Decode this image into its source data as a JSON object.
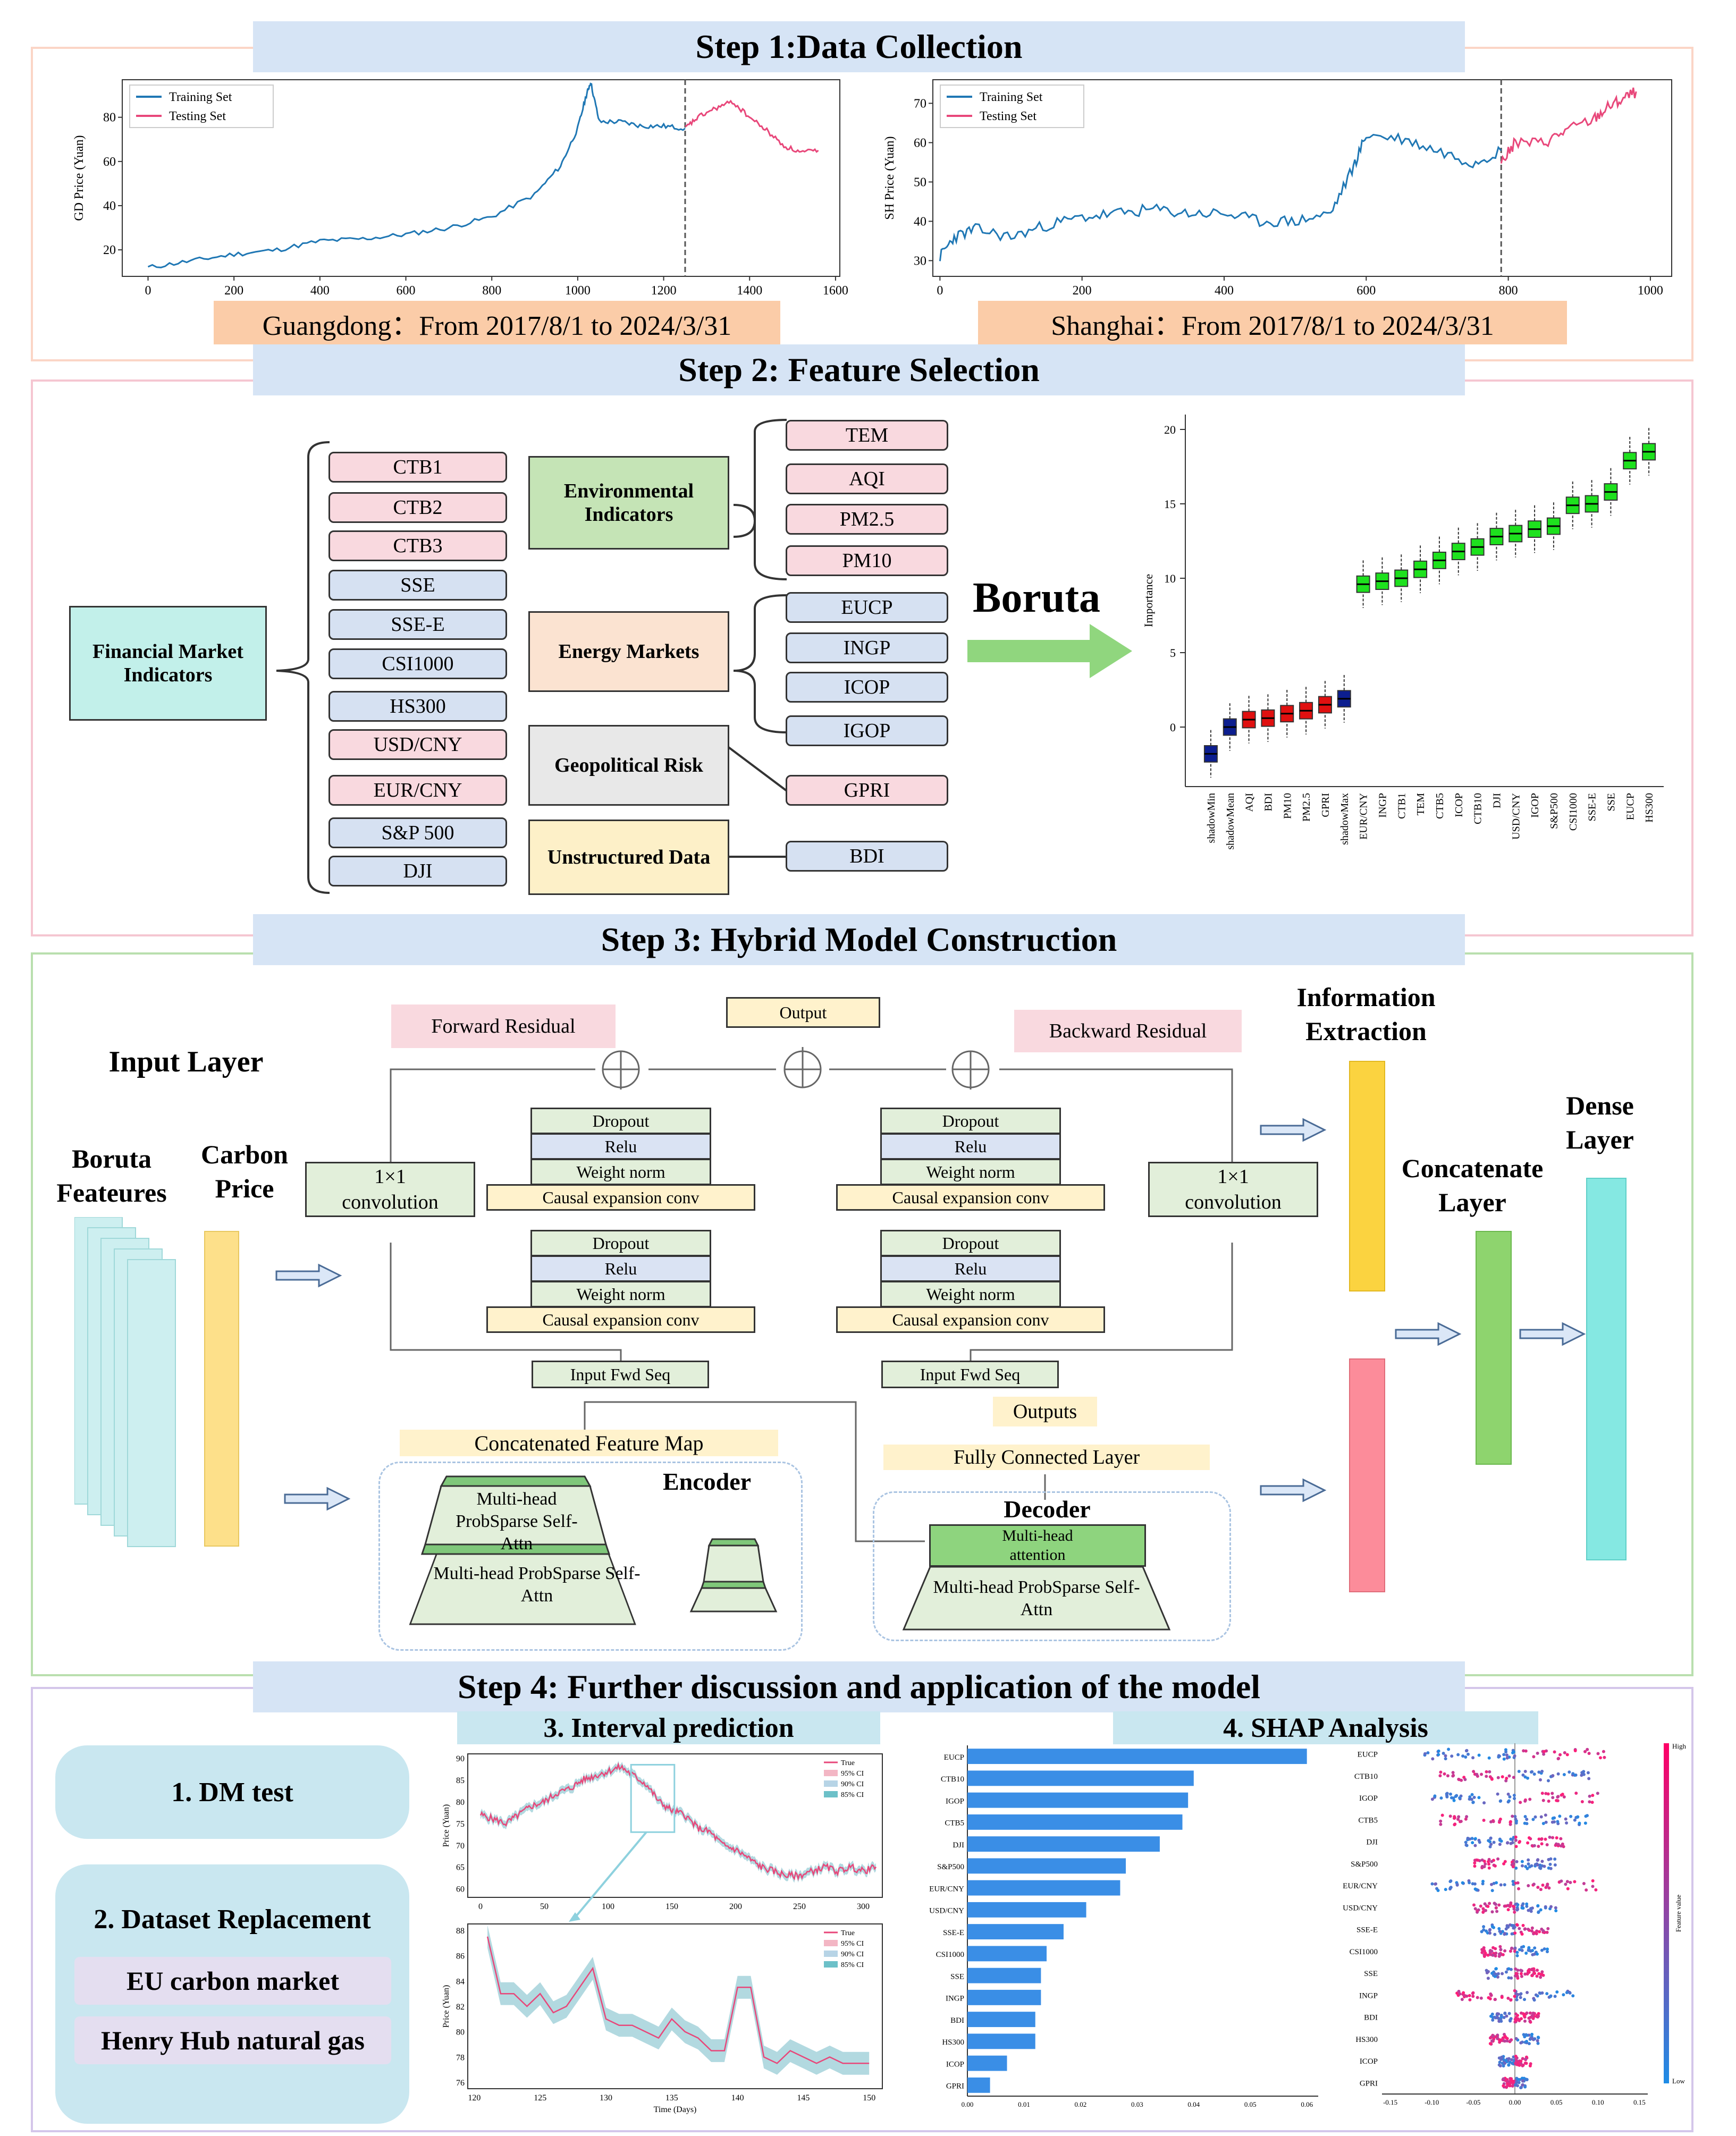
{
  "steps": {
    "step1": "Step 1:Data Collection",
    "step2": "Step 2: Feature Selection",
    "step3": "Step 3: Hybrid Model Construction",
    "step4": "Step 4: Further discussion and application of the model"
  },
  "step1": {
    "gd_caption": "Guangdong：From 2017/8/1 to 2024/3/31",
    "sh_caption": "Shanghai：From 2017/8/1 to 2024/3/31"
  },
  "chart_data": [
    {
      "type": "line",
      "ylabel": "GD Price (Yuan)",
      "x_ticks": [
        "0",
        "200",
        "400",
        "600",
        "800",
        "1000",
        "1200",
        "1400",
        "1600"
      ],
      "y_ticks": [
        "20",
        "40",
        "60",
        "80"
      ],
      "xlim": [
        -60,
        1610
      ],
      "ylim": [
        8,
        97
      ],
      "legend": [
        "Training Set",
        "Testing Set"
      ],
      "legend_position": "top-left",
      "split_x": 1250,
      "series": [
        {
          "name": "Training Set",
          "color": "#1f77b4",
          "x": [
            0,
            100,
            200,
            300,
            400,
            500,
            600,
            700,
            800,
            900,
            960,
            1000,
            1020,
            1030,
            1050,
            1100,
            1150,
            1200,
            1250
          ],
          "y": [
            12,
            15,
            18,
            20,
            24,
            25,
            27,
            30,
            35,
            45,
            58,
            75,
            90,
            96,
            78,
            78,
            76,
            76,
            75
          ]
        },
        {
          "name": "Testing Set",
          "color": "#e8477a",
          "x": [
            1250,
            1280,
            1320,
            1360,
            1400,
            1440,
            1480,
            1520,
            1560
          ],
          "y": [
            75,
            80,
            84,
            87,
            80,
            74,
            67,
            64,
            65
          ]
        }
      ]
    },
    {
      "type": "line",
      "ylabel": "SH Price (Yuan)",
      "x_ticks": [
        "0",
        "200",
        "400",
        "600",
        "800",
        "1000"
      ],
      "y_ticks": [
        "30",
        "40",
        "50",
        "60",
        "70"
      ],
      "xlim": [
        -10,
        1030
      ],
      "ylim": [
        26,
        76
      ],
      "legend": [
        "Training Set",
        "Testing Set"
      ],
      "legend_position": "top-left",
      "split_x": 790,
      "series": [
        {
          "name": "Training Set",
          "color": "#1f77b4",
          "x": [
            0,
            20,
            50,
            100,
            150,
            200,
            250,
            300,
            350,
            400,
            450,
            500,
            550,
            580,
            600,
            650,
            700,
            750,
            790
          ],
          "y": [
            31,
            36,
            38,
            36,
            39,
            41,
            42,
            43,
            42,
            42,
            40,
            40,
            42,
            53,
            62,
            61,
            58,
            55,
            58
          ]
        },
        {
          "name": "Testing Set",
          "color": "#e8477a",
          "x": [
            790,
            810,
            850,
            880,
            920,
            940,
            960,
            980
          ],
          "y": [
            55,
            60,
            60,
            63,
            66,
            69,
            71,
            73
          ]
        }
      ]
    },
    {
      "type": "box",
      "ylabel": "Importance",
      "y_ticks": [
        "0",
        "5",
        "10",
        "15",
        "20"
      ],
      "ylim": [
        -4,
        21
      ],
      "categories": [
        "shadowMin",
        "shadowMean",
        "AQI",
        "BDI",
        "PM10",
        "PM2.5",
        "GPRI",
        "shadowMax",
        "EUR/CNY",
        "INGP",
        "CTB1",
        "TEM",
        "CTB5",
        "ICOP",
        "CTB10",
        "DJI",
        "USD/CNY",
        "IGOP",
        "S&P500",
        "CSI1000",
        "SSE-E",
        "SSE",
        "EUCP",
        "HS300"
      ],
      "medians": [
        -1.8,
        0.0,
        0.5,
        0.6,
        0.9,
        1.1,
        1.5,
        1.9,
        9.6,
        9.8,
        10.0,
        10.6,
        11.2,
        11.8,
        12.1,
        12.8,
        13.0,
        13.3,
        13.5,
        14.9,
        15.0,
        15.8,
        17.9,
        18.5
      ],
      "colors": [
        "#0c1e8f",
        "#0c1e8f",
        "#e01010",
        "#e01010",
        "#e01010",
        "#e01010",
        "#e01010",
        "#0c1e8f",
        "#1ee11e",
        "#1ee11e",
        "#1ee11e",
        "#1ee11e",
        "#1ee11e",
        "#1ee11e",
        "#1ee11e",
        "#1ee11e",
        "#1ee11e",
        "#1ee11e",
        "#1ee11e",
        "#1ee11e",
        "#1ee11e",
        "#1ee11e",
        "#1ee11e",
        "#1ee11e"
      ]
    },
    {
      "type": "line",
      "ylabel": "Price (Yuan)",
      "x_ticks": [
        "0",
        "50",
        "100",
        "150",
        "200",
        "250",
        "300"
      ],
      "y_ticks": [
        "60",
        "65",
        "70",
        "75",
        "80",
        "85",
        "90"
      ],
      "xlim": [
        -10,
        315
      ],
      "ylim": [
        58,
        91
      ],
      "legend": [
        "True",
        "95% CI",
        "90% CI",
        "85% CI"
      ],
      "legend_position": "top-right",
      "series": [
        {
          "name": "True",
          "color": "#e8477a",
          "x": [
            0,
            10,
            20,
            30,
            40,
            50,
            60,
            70,
            80,
            90,
            100,
            110,
            120,
            130,
            140,
            150,
            160,
            170,
            180,
            190,
            200,
            210,
            220,
            230,
            240,
            250,
            260,
            270,
            280,
            290,
            300,
            310
          ],
          "y": [
            77,
            76,
            75,
            77,
            79,
            80,
            82,
            83,
            85,
            86,
            87,
            88,
            86,
            84,
            80,
            78,
            77,
            74,
            73,
            70,
            69,
            67,
            65,
            64,
            63,
            63,
            64,
            65,
            64,
            65,
            64,
            65
          ]
        }
      ]
    },
    {
      "type": "line",
      "xlabel": "Time (Days)",
      "ylabel": "Price (Yuan)",
      "x_ticks": [
        "120",
        "125",
        "130",
        "135",
        "140",
        "145",
        "150"
      ],
      "y_ticks": [
        "76",
        "78",
        "80",
        "82",
        "84",
        "86",
        "88"
      ],
      "xlim": [
        119.5,
        151
      ],
      "ylim": [
        75.5,
        88.5
      ],
      "legend": [
        "True",
        "95% CI",
        "90% CI",
        "85% CI"
      ],
      "legend_position": "top-right",
      "series": [
        {
          "name": "True",
          "color": "#e8477a",
          "x": [
            121,
            122,
            123,
            124,
            125,
            126,
            127,
            128,
            129,
            130,
            131,
            132,
            133,
            134,
            135,
            136,
            137,
            138,
            139,
            140,
            141,
            142,
            143,
            144,
            145,
            146,
            147,
            148,
            149,
            150
          ],
          "y": [
            87.5,
            83,
            83,
            82,
            83,
            81.5,
            82,
            83.5,
            85,
            81,
            80.5,
            80.5,
            80,
            79.5,
            81,
            80,
            79.5,
            78.5,
            78.5,
            83.5,
            83.5,
            78,
            77.5,
            78.5,
            78,
            77.5,
            78,
            77.5,
            77.5,
            77.5
          ]
        }
      ]
    },
    {
      "type": "bar",
      "orientation": "horizontal",
      "categories": [
        "EUCP",
        "CTB10",
        "IGOP",
        "CTB5",
        "DJI",
        "S&P500",
        "EUR/CNY",
        "USD/CNY",
        "SSE-E",
        "CSI1000",
        "SSE",
        "INGP",
        "BDI",
        "HS300",
        "ICOP",
        "GPRI"
      ],
      "values": [
        0.06,
        0.04,
        0.039,
        0.038,
        0.034,
        0.028,
        0.027,
        0.021,
        0.017,
        0.014,
        0.013,
        0.013,
        0.012,
        0.012,
        0.007,
        0.004
      ],
      "x_ticks": [
        "0.00",
        "0.01",
        "0.02",
        "0.03",
        "0.04",
        "0.05",
        "0.06"
      ],
      "xlim": [
        0,
        0.062
      ],
      "color": "#3a8ee6"
    },
    {
      "type": "scatter",
      "categories": [
        "EUCP",
        "CTB10",
        "IGOP",
        "CTB5",
        "DJI",
        "S&P500",
        "EUR/CNY",
        "USD/CNY",
        "SSE-E",
        "CSI1000",
        "SSE",
        "INGP",
        "BDI",
        "HS300",
        "ICOP",
        "GPRI"
      ],
      "x_ticks": [
        "-0.15",
        "-0.10",
        "-0.05",
        "0.00",
        "0.05",
        "0.10",
        "0.15"
      ],
      "xlim": [
        -0.16,
        0.16
      ],
      "colorbar": {
        "high": "High",
        "low": "Low",
        "label": "Feature value"
      }
    }
  ],
  "step2": {
    "financial_label": "Financial Market Indicators",
    "financial": [
      "CTB1",
      "CTB2",
      "CTB3",
      "SSE",
      "SSE-E",
      "CSI1000",
      "HS300",
      "USD/CNY",
      "EUR/CNY",
      "S&P 500",
      "DJI"
    ],
    "financial_types": [
      "pink",
      "pink",
      "pink",
      "blue",
      "blue",
      "blue",
      "blue",
      "pink",
      "pink",
      "blue",
      "blue"
    ],
    "categories": [
      "Environmental Indicators",
      "Energy Markets",
      "Geopolitical Risk",
      "Unstructured Data"
    ],
    "environmental": [
      "TEM",
      "AQI",
      "PM2.5",
      "PM10"
    ],
    "energy": [
      "EUCP",
      "INGP",
      "ICOP",
      "IGOP"
    ],
    "geo": "GPRI",
    "unstructured": "BDI",
    "boruta": "Boruta"
  },
  "step3": {
    "input_layer": "Input Layer",
    "boruta_features": "Boruta Feateures",
    "carbon_price": "Carbon Price",
    "conv": "1×1 convolution",
    "forward_residual": "Forward Residual",
    "backward_residual": "Backward Residual",
    "output": "Output",
    "dropout": "Dropout",
    "relu": "Relu",
    "weight_norm": "Weight norm",
    "causal": "Causal expansion conv",
    "input_fwd": "Input Fwd Seq",
    "info_extraction": "Information Extraction",
    "concat_layer": "Concatenate Layer",
    "dense_layer": "Dense Layer",
    "concat_map": "Concatenated Feature Map",
    "encoder": "Encoder",
    "decoder": "Decoder",
    "mhps_attn": "Multi-head ProbSparse Self-Attn",
    "mh_attention": "Multi-head attention",
    "outputs": "Outputs",
    "fc_layer": "Fully Connected Layer"
  },
  "step4": {
    "dm": "1. DM test",
    "dataset": "2. Dataset Replacement",
    "eu": "EU carbon market",
    "hh": "Henry Hub natural gas",
    "interval": "3. Interval prediction",
    "shap": "4. SHAP Analysis"
  }
}
